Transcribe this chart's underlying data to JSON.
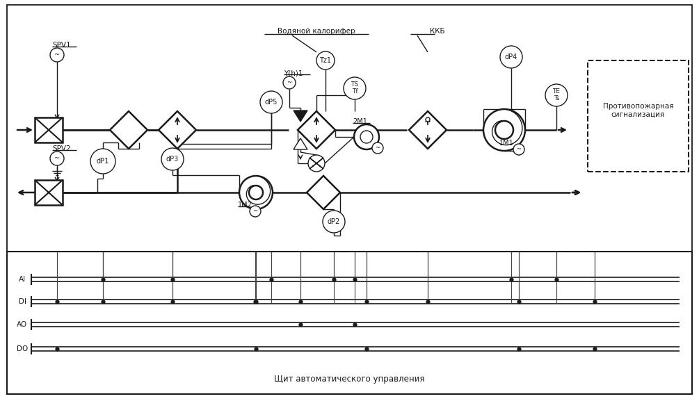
{
  "bg_color": "#ffffff",
  "line_color": "#1a1a1a",
  "lw": 1.0,
  "tlw": 1.8,
  "fs": 7.5,
  "shield_label": "Щит автоматического управления",
  "vodyanoy_label": "Водяной калорифер",
  "kkb_label": "ККБ",
  "prot_label": "Противопожарная\nсигнализация",
  "bus_labels": [
    "AI",
    "DI",
    "AO",
    "DO"
  ]
}
